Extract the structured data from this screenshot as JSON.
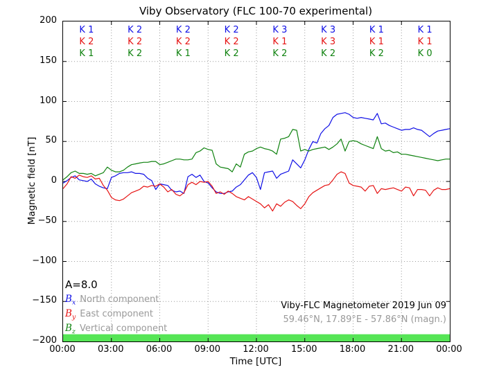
{
  "title": "Viby Observatory (FLC 100-70 experimental)",
  "colors": {
    "bx": "#0f0fe6",
    "by": "#e61414",
    "bz": "#0f820f",
    "activity_bar": "#55e555",
    "grid": "#9a9a9a",
    "axis": "#000000",
    "muted_text": "#999999"
  },
  "k_index": {
    "prefix": "K",
    "bx": [
      1,
      2,
      2,
      2,
      3,
      3,
      1,
      1
    ],
    "by": [
      2,
      2,
      2,
      2,
      1,
      3,
      1,
      1
    ],
    "bz": [
      1,
      2,
      1,
      2,
      2,
      2,
      2,
      0
    ]
  },
  "annotations": {
    "a_index": "A=8.0",
    "station_line1": "Viby-FLC Magnetometer 2019 Jun 09",
    "station_line2": "59.46°N, 17.89°E - 57.86°N (magn.)"
  },
  "legend": [
    {
      "symbol": "B",
      "sub": "x",
      "label": "North component"
    },
    {
      "symbol": "B",
      "sub": "y",
      "label": "East component"
    },
    {
      "symbol": "B",
      "sub": "z",
      "label": "Vertical component"
    }
  ],
  "chart_data": {
    "type": "line",
    "title": "Viby Observatory (FLC 100-70 experimental)",
    "xlabel": "Time [UTC]",
    "ylabel": "Magnetic field [nT]",
    "xlim_hours": [
      0,
      24
    ],
    "ylim": [
      -200,
      200
    ],
    "grid": "dotted",
    "x_tick_hours": [
      0,
      3,
      6,
      9,
      12,
      15,
      18,
      21,
      24
    ],
    "x_tick_labels": [
      "00:00",
      "03:00",
      "06:00",
      "09:00",
      "12:00",
      "15:00",
      "18:00",
      "21:00",
      "00:00"
    ],
    "y_tick_values": [
      200,
      150,
      100,
      50,
      0,
      -50,
      -100,
      -150,
      -200
    ],
    "y_tick_labels": [
      "200",
      "150",
      "100",
      "50",
      "0",
      "−50",
      "−100",
      "−150",
      "−200"
    ],
    "x_step_hours": 0.25,
    "activity_bar": {
      "color": "#55e555",
      "y_range": [
        -191,
        -200
      ],
      "x_range_hours": [
        0,
        24
      ]
    },
    "series": [
      {
        "name": "Bx North component",
        "color": "#0f0fe6",
        "values": [
          -2,
          1,
          5,
          7,
          2,
          1,
          0,
          3,
          -3,
          -6,
          -8,
          -9,
          5,
          7,
          10,
          11,
          11,
          12,
          10,
          10,
          9,
          4,
          1,
          -10,
          -3,
          -4,
          -5,
          -11,
          -13,
          -12,
          -15,
          6,
          9,
          5,
          8,
          0,
          -2,
          -8,
          -13,
          -15,
          -15,
          -13,
          -12,
          -7,
          -4,
          2,
          8,
          11,
          5,
          -10,
          11,
          12,
          13,
          4,
          9,
          11,
          13,
          27,
          22,
          17,
          27,
          40,
          50,
          48,
          60,
          66,
          70,
          80,
          84,
          85,
          86,
          84,
          80,
          79,
          80,
          79,
          78,
          77,
          85,
          72,
          73,
          70,
          68,
          66,
          64,
          65,
          65,
          67,
          65,
          64,
          60,
          56,
          60,
          63,
          64,
          65,
          66
        ]
      },
      {
        "name": "By East component",
        "color": "#e61414",
        "values": [
          -9,
          -3,
          6,
          4,
          8,
          6,
          5,
          7,
          3,
          4,
          -5,
          -11,
          -20,
          -23,
          -24,
          -22,
          -18,
          -14,
          -12,
          -10,
          -6,
          -7,
          -5,
          -6,
          -3,
          -7,
          -13,
          -10,
          -16,
          -18,
          -14,
          -4,
          -1,
          -4,
          0,
          -1,
          0,
          -6,
          -15,
          -13,
          -16,
          -12,
          -15,
          -19,
          -21,
          -23,
          -19,
          -22,
          -25,
          -28,
          -33,
          -29,
          -37,
          -28,
          -31,
          -26,
          -23,
          -25,
          -30,
          -34,
          -28,
          -19,
          -14,
          -11,
          -8,
          -5,
          -4,
          2,
          9,
          12,
          10,
          -2,
          -5,
          -6,
          -7,
          -12,
          -6,
          -5,
          -15,
          -9,
          -10,
          -9,
          -8,
          -10,
          -12,
          -7,
          -8,
          -18,
          -10,
          -10,
          -11,
          -18,
          -11,
          -8,
          -10,
          -10,
          -9
        ]
      },
      {
        "name": "Bz Vertical component",
        "color": "#0f820f",
        "values": [
          2,
          6,
          11,
          13,
          10,
          10,
          9,
          10,
          7,
          9,
          11,
          18,
          14,
          12,
          12,
          14,
          18,
          21,
          22,
          23,
          24,
          24,
          25,
          25,
          21,
          22,
          24,
          26,
          28,
          28,
          27,
          27,
          28,
          36,
          38,
          42,
          40,
          39,
          22,
          18,
          17,
          16,
          12,
          22,
          18,
          34,
          37,
          38,
          41,
          43,
          41,
          40,
          38,
          34,
          53,
          54,
          56,
          65,
          64,
          38,
          40,
          38,
          40,
          41,
          42,
          43,
          40,
          43,
          47,
          53,
          38,
          50,
          51,
          50,
          47,
          45,
          43,
          41,
          56,
          41,
          38,
          39,
          36,
          37,
          34,
          34,
          33,
          32,
          31,
          30,
          29,
          28,
          27,
          26,
          27,
          28,
          28
        ]
      }
    ]
  }
}
